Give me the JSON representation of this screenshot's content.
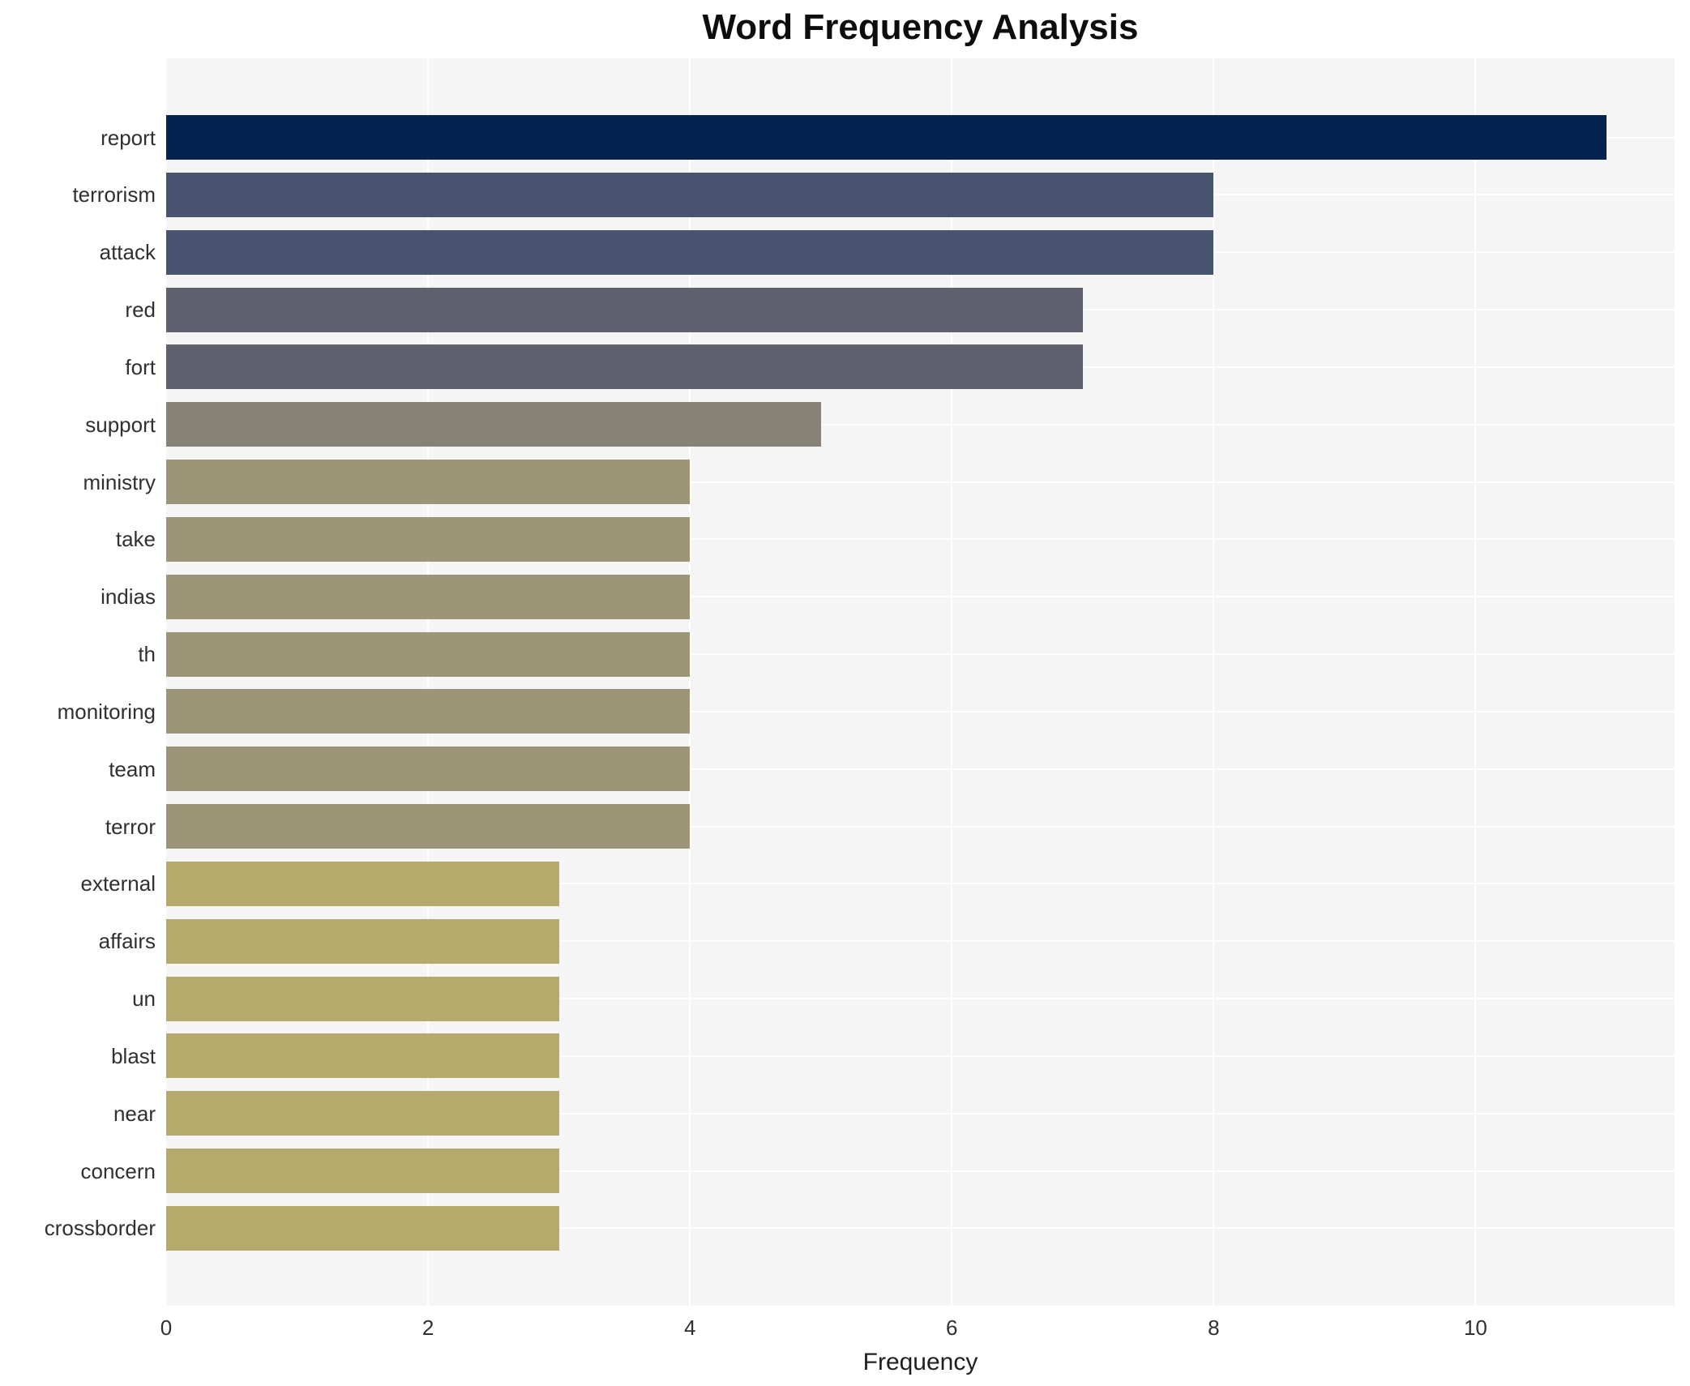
{
  "chart_data": {
    "type": "bar",
    "orientation": "horizontal",
    "title": "Word Frequency Analysis",
    "xlabel": "Frequency",
    "ylabel": "",
    "categories": [
      "report",
      "terrorism",
      "attack",
      "red",
      "fort",
      "support",
      "ministry",
      "take",
      "indias",
      "th",
      "monitoring",
      "team",
      "terror",
      "external",
      "affairs",
      "un",
      "blast",
      "near",
      "concern",
      "crossborder"
    ],
    "values": [
      11,
      8,
      8,
      7,
      7,
      5,
      4,
      4,
      4,
      4,
      4,
      4,
      4,
      3,
      3,
      3,
      3,
      3,
      3,
      3
    ],
    "bar_colors": [
      "#042350",
      "#485370",
      "#485370",
      "#5e616d",
      "#5e616d",
      "#868376",
      "#9d9577",
      "#9d9577",
      "#9d9577",
      "#9d9577",
      "#9d9577",
      "#9d9577",
      "#9d9577",
      "#b5aa6c",
      "#b5aa6c",
      "#b5aa6c",
      "#b5aa6c",
      "#b5aa6c",
      "#b5aa6c",
      "#b5aa6c"
    ],
    "xlim": [
      0,
      11.52
    ],
    "xticks": [
      0,
      2,
      4,
      6,
      8,
      10
    ],
    "grid": true,
    "legend_position": "none",
    "plot_bg": "#f5f5f6",
    "grid_color": "#ffffff"
  }
}
